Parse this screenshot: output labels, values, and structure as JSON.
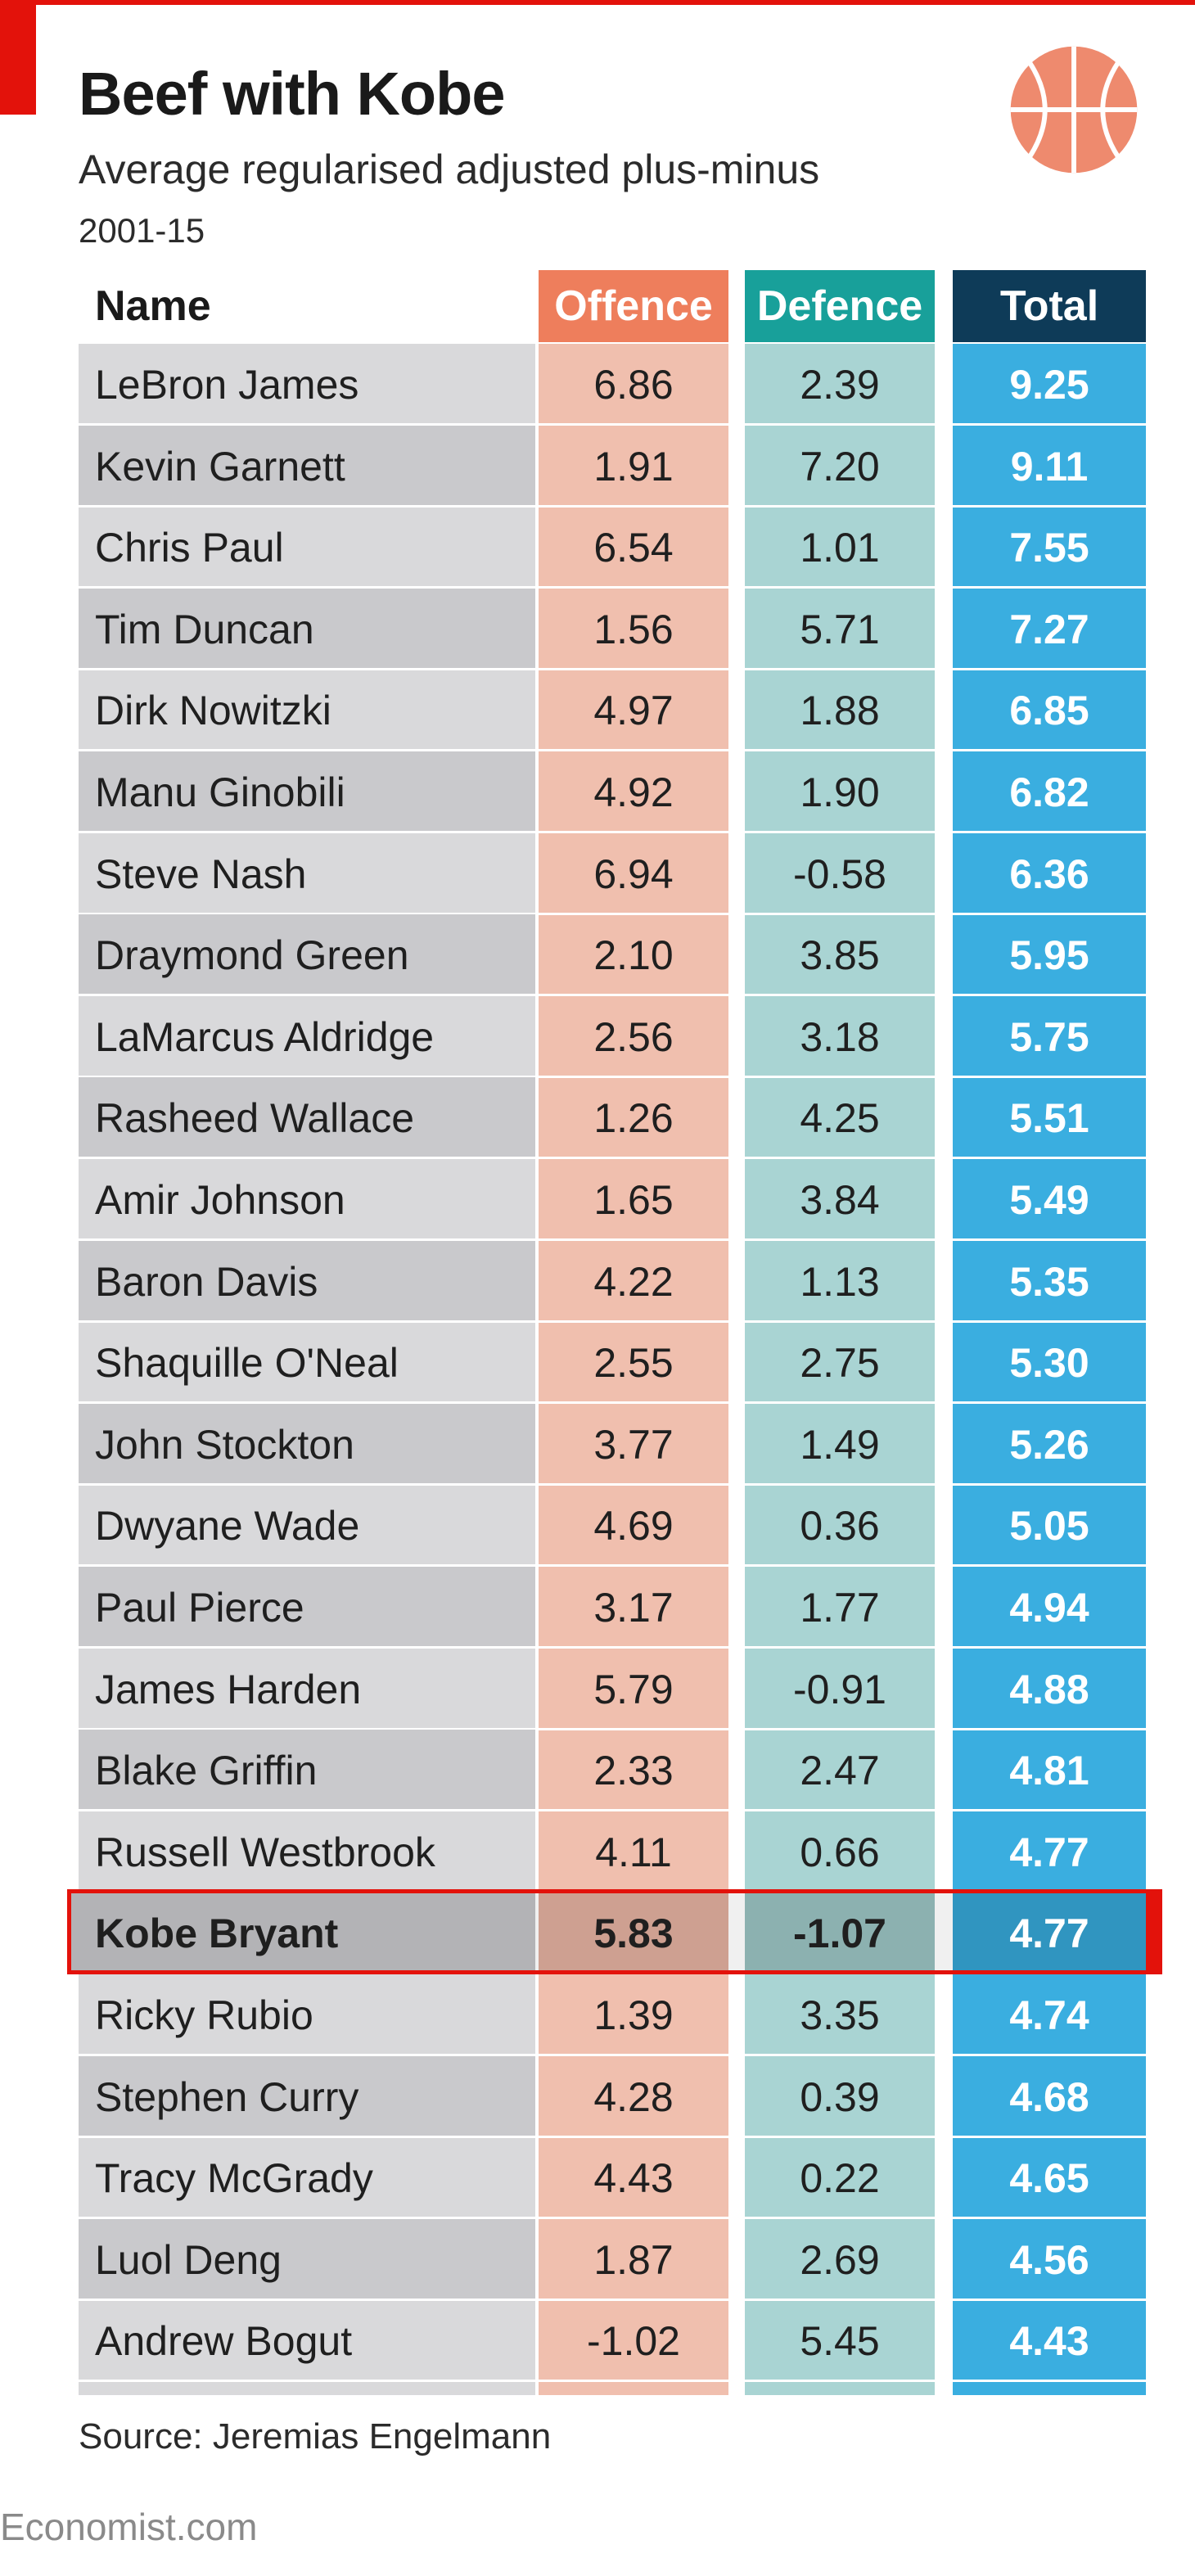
{
  "title": "Beef with Kobe",
  "subtitle": "Average regularised adjusted plus-minus",
  "years": "2001-15",
  "source": "Source: Jeremias Engelmann",
  "brand": "Economist.com",
  "icon": "basketball-icon",
  "colors": {
    "offence_header": "#ee7e5c",
    "defence_header": "#18a09a",
    "total_header": "#0e3b58",
    "offence_col": "#f0bfae",
    "defence_col": "#a9d4d3",
    "total_col": "#3aaee0",
    "highlight": "#e3120b"
  },
  "chart_data": {
    "type": "table",
    "title": "Beef with Kobe",
    "subtitle": "Average regularised adjusted plus-minus",
    "columns": [
      "Name",
      "Offence",
      "Defence",
      "Total"
    ],
    "highlight_row": "Kobe Bryant",
    "rows": [
      {
        "name": "LeBron James",
        "offence": "6.86",
        "defence": "2.39",
        "total": "9.25"
      },
      {
        "name": "Kevin Garnett",
        "offence": "1.91",
        "defence": "7.20",
        "total": "9.11"
      },
      {
        "name": "Chris Paul",
        "offence": "6.54",
        "defence": "1.01",
        "total": "7.55"
      },
      {
        "name": "Tim Duncan",
        "offence": "1.56",
        "defence": "5.71",
        "total": "7.27"
      },
      {
        "name": "Dirk Nowitzki",
        "offence": "4.97",
        "defence": "1.88",
        "total": "6.85"
      },
      {
        "name": "Manu Ginobili",
        "offence": "4.92",
        "defence": "1.90",
        "total": "6.82"
      },
      {
        "name": "Steve Nash",
        "offence": "6.94",
        "defence": "-0.58",
        "total": "6.36"
      },
      {
        "name": "Draymond Green",
        "offence": "2.10",
        "defence": "3.85",
        "total": "5.95"
      },
      {
        "name": "LaMarcus Aldridge",
        "offence": "2.56",
        "defence": "3.18",
        "total": "5.75"
      },
      {
        "name": "Rasheed Wallace",
        "offence": "1.26",
        "defence": "4.25",
        "total": "5.51"
      },
      {
        "name": "Amir Johnson",
        "offence": "1.65",
        "defence": "3.84",
        "total": "5.49"
      },
      {
        "name": "Baron Davis",
        "offence": "4.22",
        "defence": "1.13",
        "total": "5.35"
      },
      {
        "name": "Shaquille O'Neal",
        "offence": "2.55",
        "defence": "2.75",
        "total": "5.30"
      },
      {
        "name": "John Stockton",
        "offence": "3.77",
        "defence": "1.49",
        "total": "5.26"
      },
      {
        "name": "Dwyane Wade",
        "offence": "4.69",
        "defence": "0.36",
        "total": "5.05"
      },
      {
        "name": "Paul Pierce",
        "offence": "3.17",
        "defence": "1.77",
        "total": "4.94"
      },
      {
        "name": "James Harden",
        "offence": "5.79",
        "defence": "-0.91",
        "total": "4.88"
      },
      {
        "name": "Blake Griffin",
        "offence": "2.33",
        "defence": "2.47",
        "total": "4.81"
      },
      {
        "name": "Russell Westbrook",
        "offence": "4.11",
        "defence": "0.66",
        "total": "4.77"
      },
      {
        "name": "Kobe Bryant",
        "offence": "5.83",
        "defence": "-1.07",
        "total": "4.77"
      },
      {
        "name": "Ricky Rubio",
        "offence": "1.39",
        "defence": "3.35",
        "total": "4.74"
      },
      {
        "name": "Stephen Curry",
        "offence": "4.28",
        "defence": "0.39",
        "total": "4.68"
      },
      {
        "name": "Tracy McGrady",
        "offence": "4.43",
        "defence": "0.22",
        "total": "4.65"
      },
      {
        "name": "Luol Deng",
        "offence": "1.87",
        "defence": "2.69",
        "total": "4.56"
      },
      {
        "name": "Andrew Bogut",
        "offence": "-1.02",
        "defence": "5.45",
        "total": "4.43"
      }
    ]
  }
}
